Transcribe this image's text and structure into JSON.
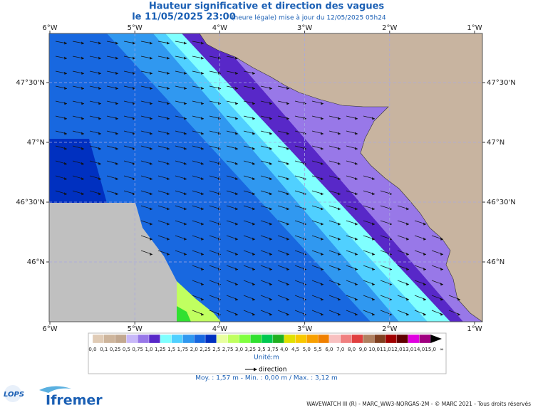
{
  "header": {
    "title": "Hauteur significative et direction des vagues",
    "date": "le 11/05/2025 23:00",
    "update": "(heure légale) mise à jour du 12/05/2025 05h24"
  },
  "map": {
    "lon_labels": [
      "6°W",
      "5°W",
      "4°W",
      "3°W",
      "2°W",
      "1°W"
    ],
    "lat_labels": [
      "47°30'N",
      "47°N",
      "46°30'N",
      "46°N"
    ]
  },
  "legend": {
    "labels": [
      "0,0",
      "0,1",
      "0,25",
      "0,5",
      "0,75",
      "1,0",
      "1,25",
      "1,5",
      "1,75",
      "2,0",
      "2,25",
      "2,5",
      "2,75",
      "3,0",
      "3,25",
      "3,5",
      "3,75",
      "4,0",
      "4,5",
      "5,0",
      "5,5",
      "6,0",
      "7,0",
      "8,0",
      "9,0",
      "10,0",
      "11,0",
      "12,0",
      "13,0",
      "14,0",
      "15,0",
      "∞"
    ],
    "colors": [
      "#e0cbb5",
      "#ceb59c",
      "#c2a890",
      "#c8b8f8",
      "#9878e8",
      "#5828c8",
      "#80ffff",
      "#50d0ff",
      "#3098f0",
      "#1868e0",
      "#0030c0",
      "#e8ffa0",
      "#c0ff60",
      "#80ff40",
      "#30e030",
      "#00c850",
      "#20b020",
      "#e0e000",
      "#f8c800",
      "#f8a000",
      "#f08000",
      "#f8c0c0",
      "#f08080",
      "#e04040",
      "#b08060",
      "#804020",
      "#a00000",
      "#600000",
      "#e000e0",
      "#a00080",
      "#000000"
    ],
    "unit": "Unité:m",
    "direction": "direction"
  },
  "stats": "Moy. : 1,57 m   -   Min. : 0,00 m / Max. : 3,12 m",
  "footer": {
    "lops": "LOPS",
    "brand": "Ifremer",
    "credit": "WAVEWATCH III (R) - MARC_WW3-NORGAS-2M - © MARC 2021 - Tous droits réservés"
  }
}
